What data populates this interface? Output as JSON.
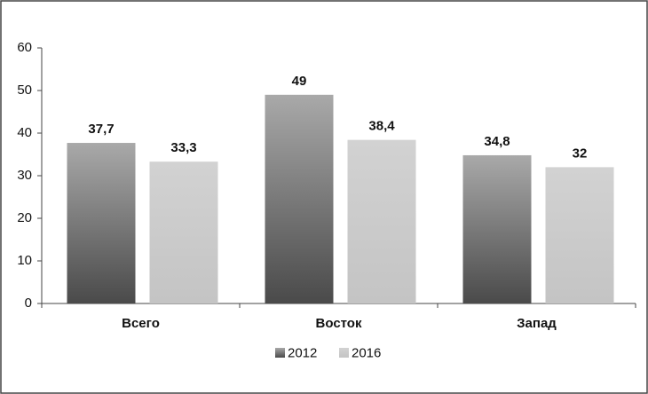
{
  "chart_data": {
    "type": "bar",
    "categories": [
      "Всего",
      "Восток",
      "Запад"
    ],
    "series": [
      {
        "name": "2012",
        "color": "#a9a9a9",
        "values": [
          37.7,
          49,
          34.8
        ],
        "value_labels": [
          "37,7",
          "49",
          "34,8"
        ]
      },
      {
        "name": "2016",
        "color": "#d2d2d2",
        "values": [
          33.3,
          38.4,
          32
        ],
        "value_labels": [
          "33,3",
          "38,4",
          "32"
        ]
      }
    ],
    "ylim": [
      0,
      60
    ],
    "yticks": [
      0,
      10,
      20,
      30,
      40,
      50,
      60
    ],
    "grid": false,
    "legend": "bottom"
  }
}
